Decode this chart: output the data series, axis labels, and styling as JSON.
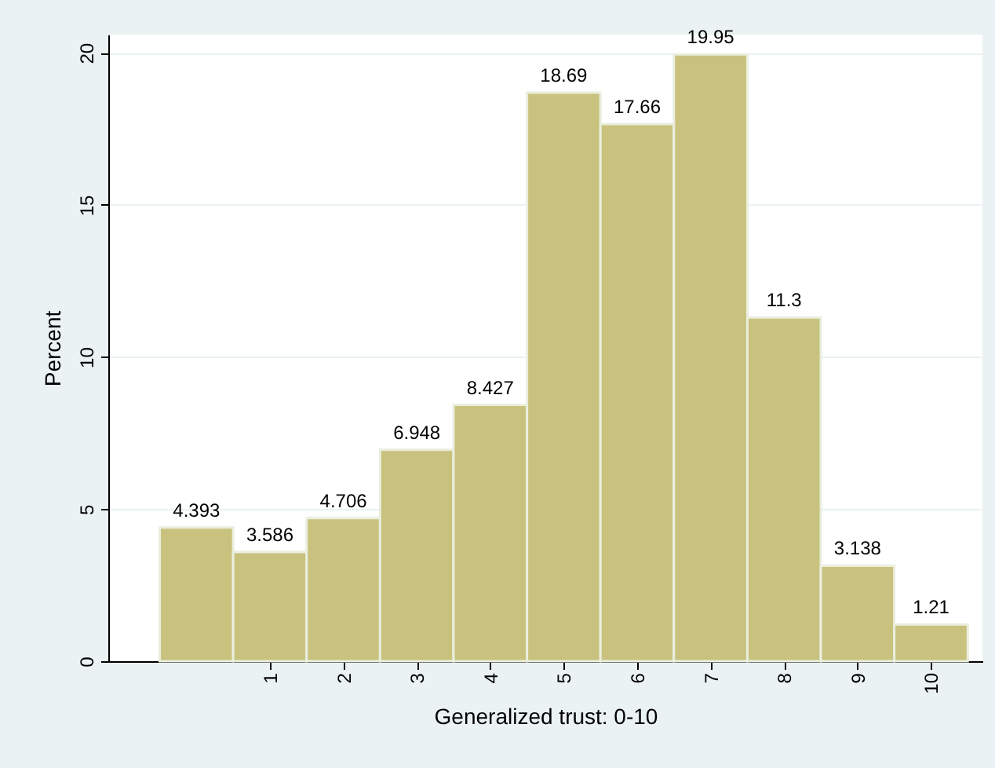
{
  "chart_data": {
    "type": "histogram",
    "xlabel": "Generalized trust: 0-10",
    "ylabel": "Percent",
    "bins": [
      -0.5,
      0.5,
      1.5,
      2.5,
      3.5,
      4.5,
      5.5,
      6.5,
      7.5,
      8.5,
      9.5,
      10.5
    ],
    "values": [
      4.393,
      3.586,
      4.706,
      6.948,
      8.427,
      18.69,
      17.66,
      19.95,
      11.3,
      3.138,
      1.21
    ],
    "color": "#c9c27e",
    "xlim": [
      -1.2,
      10.7
    ],
    "xticks": [
      1,
      2,
      3,
      4,
      5,
      6,
      7,
      8,
      9,
      10
    ],
    "ylim": [
      0,
      20.6
    ],
    "yticks": [
      0,
      5,
      10,
      15,
      20
    ],
    "grid": "y",
    "data_labels": true
  }
}
